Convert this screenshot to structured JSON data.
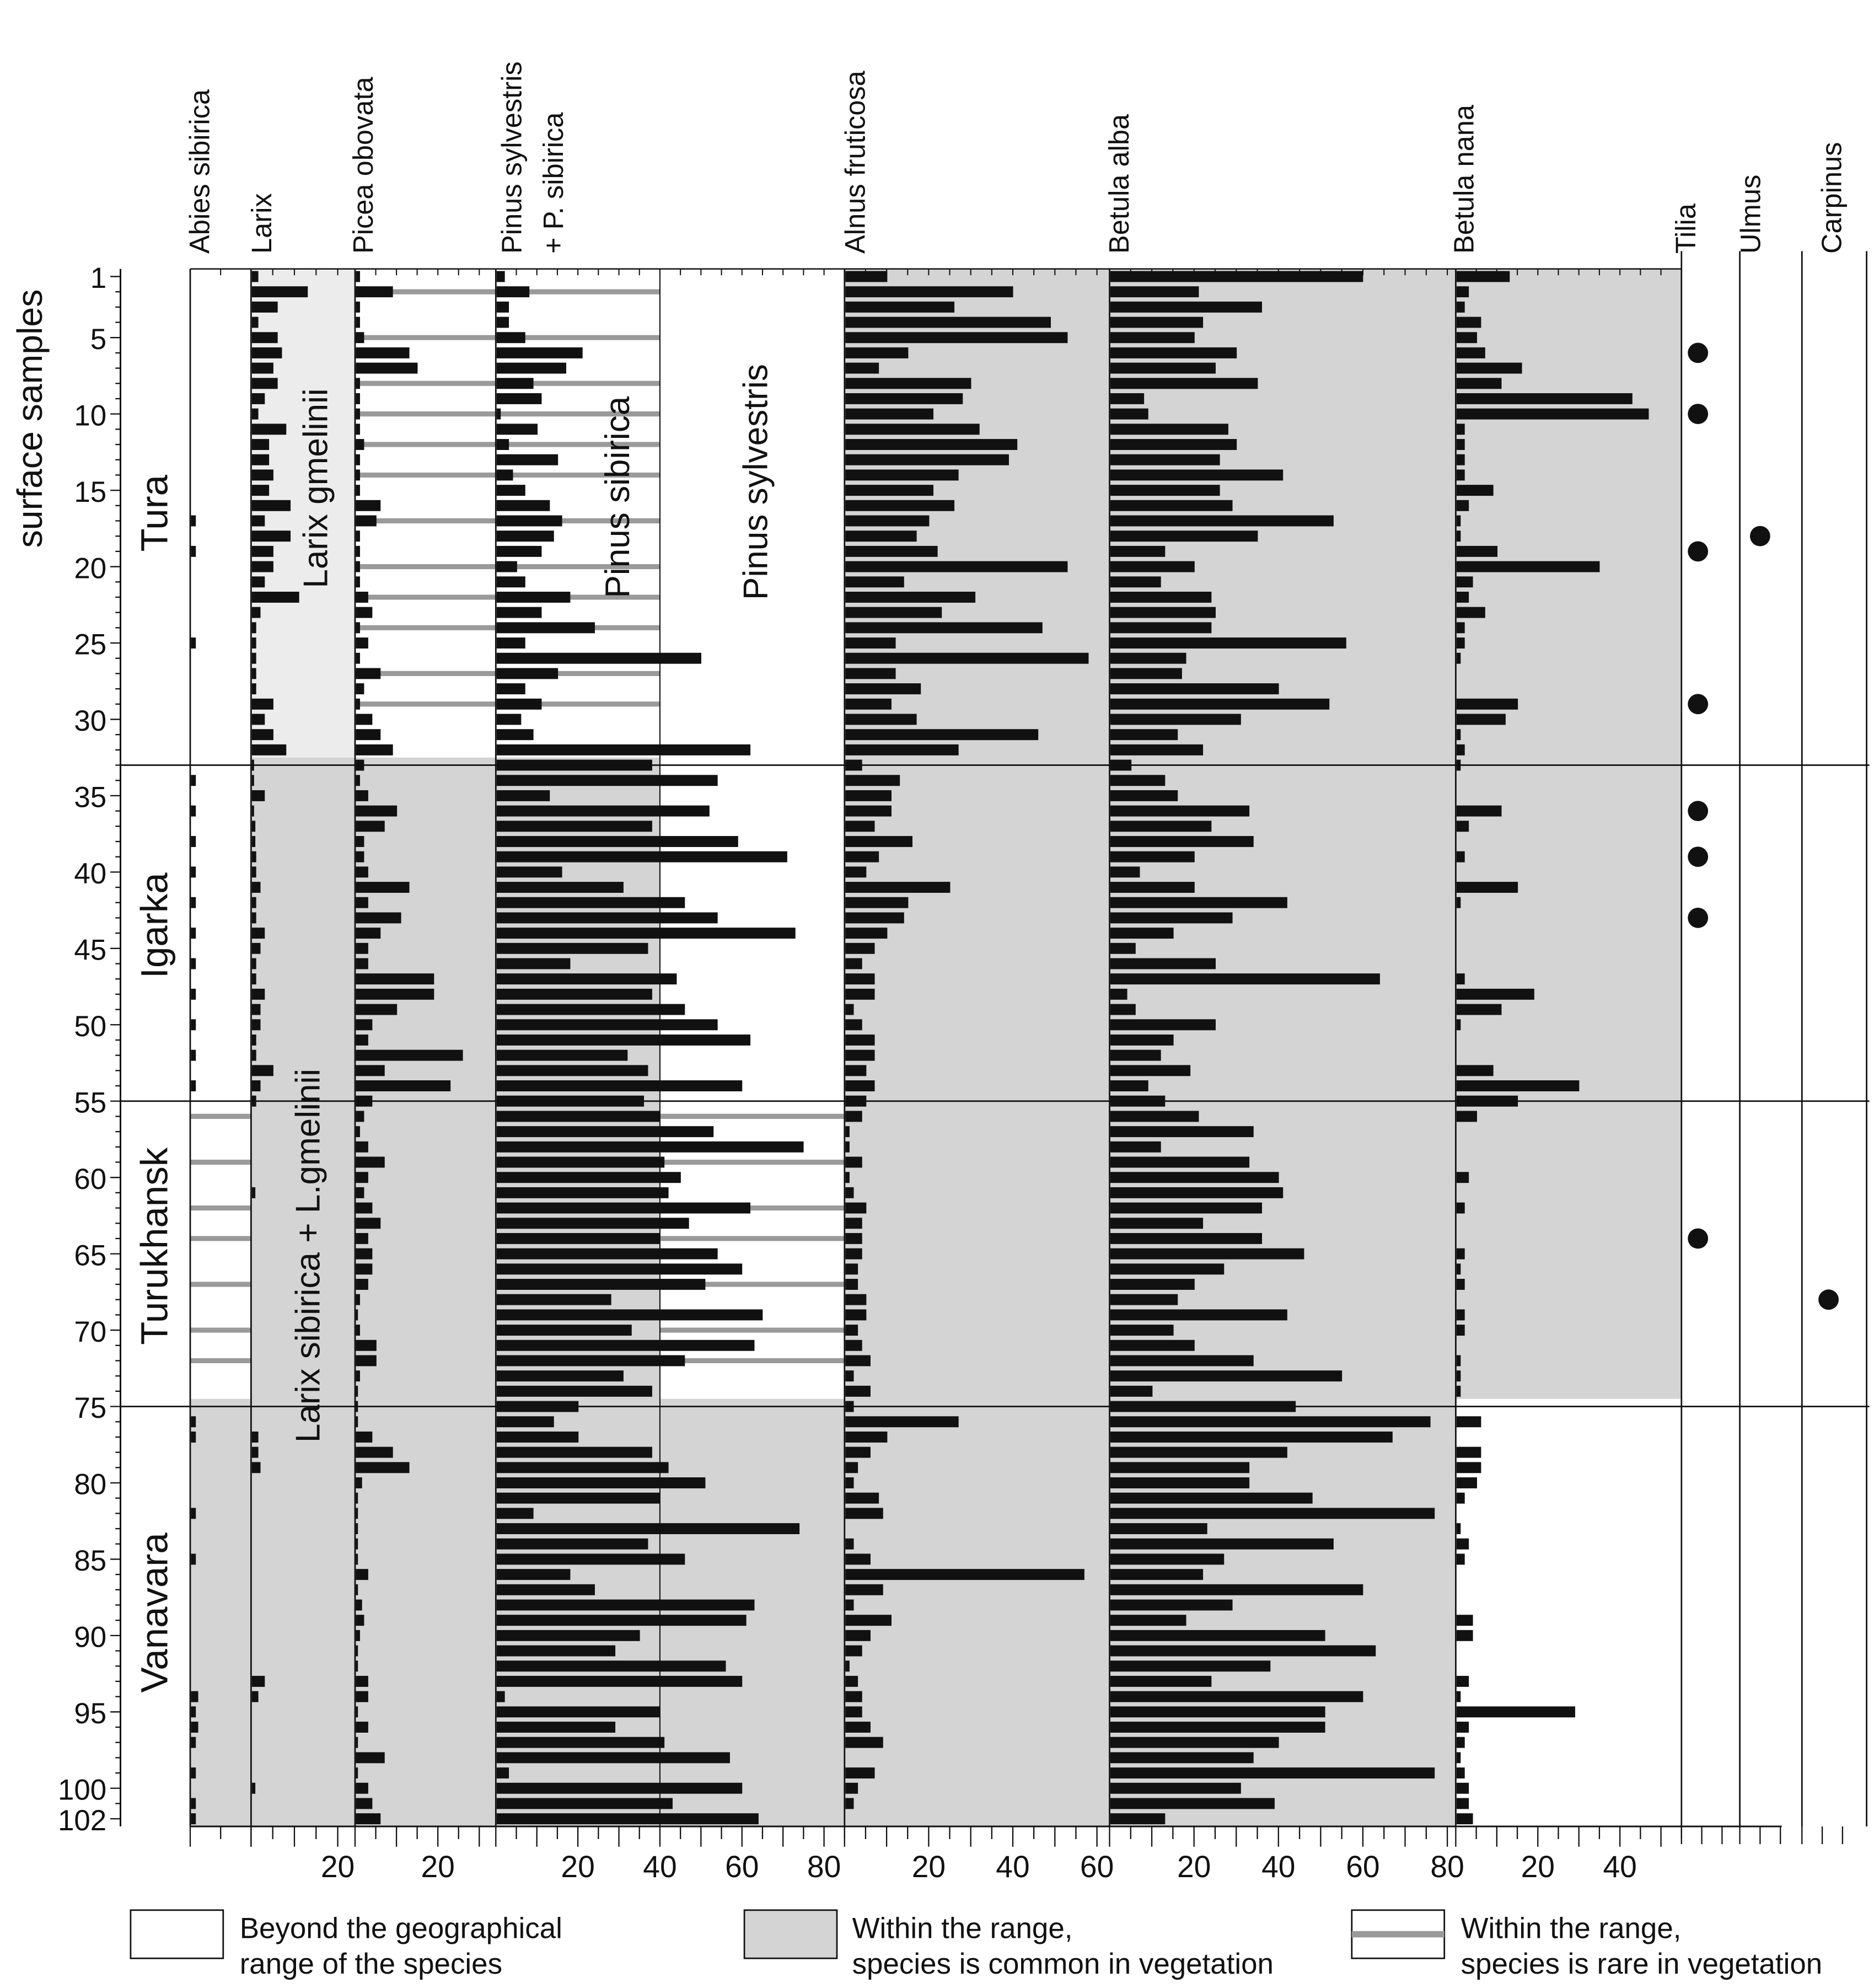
{
  "chart_data": {
    "type": "bar",
    "orientation": "horizontal",
    "y_axis_label": "surface samples",
    "y_ticks": [
      "1",
      "5",
      "10",
      "15",
      "20",
      "25",
      "30",
      "35",
      "40",
      "45",
      "50",
      "55",
      "60",
      "65",
      "70",
      "75",
      "80",
      "85",
      "90",
      "95",
      "100",
      "102"
    ],
    "sample_range": [
      1,
      102
    ],
    "regions": [
      {
        "name": "Tura",
        "samples": [
          1,
          32
        ]
      },
      {
        "name": "Igarka",
        "samples": [
          33,
          54
        ]
      },
      {
        "name": "Turukhansk",
        "samples": [
          55,
          74
        ]
      },
      {
        "name": "Vanavara",
        "samples": [
          75,
          102
        ]
      }
    ],
    "zone_labels": [
      {
        "text": "Larix gmelinii"
      },
      {
        "text": "Larix sibirica + L.gmelinii"
      },
      {
        "text": "Pinus sibirica"
      },
      {
        "text": "Pinus sylvestris"
      }
    ],
    "panels": [
      {
        "name": "Abies sibirica",
        "xmax": 10,
        "ticks": [],
        "values": [
          0,
          0,
          0,
          0,
          0,
          0,
          0,
          0,
          0,
          0,
          0,
          0,
          0,
          0,
          0,
          0,
          0.8,
          0,
          0.8,
          0,
          0,
          0,
          0,
          0,
          0.8,
          0,
          0,
          0,
          0,
          0,
          0,
          0,
          0,
          0.8,
          0,
          0.8,
          0,
          0.8,
          0,
          0.8,
          0,
          0.8,
          0,
          0.8,
          0,
          0.8,
          0,
          0.8,
          0,
          0.8,
          0,
          0.8,
          0,
          0.8,
          0,
          0,
          0,
          0,
          0,
          0,
          0,
          0,
          0,
          0,
          0,
          0,
          0,
          0,
          0,
          0,
          0,
          0,
          0,
          0,
          0,
          0.8,
          0.8,
          0,
          0,
          0,
          0,
          0.8,
          0,
          0,
          0.8,
          0,
          0,
          0,
          0,
          0,
          0,
          0,
          0,
          1.2,
          0.8,
          1.2,
          0.8,
          0,
          0.8,
          0,
          0.8,
          0.8
        ]
      },
      {
        "name": "Larix",
        "xmax": 24,
        "ticks": [
          20
        ],
        "values": [
          1.5,
          13,
          6,
          1.5,
          6,
          7,
          5,
          6,
          3,
          1.5,
          8,
          4,
          4,
          5,
          4,
          9,
          3,
          9,
          5,
          5,
          3,
          11,
          2,
          1,
          1,
          1,
          1,
          1,
          5,
          3,
          5,
          8,
          0.5,
          0.5,
          3,
          0.5,
          0.8,
          0.8,
          1,
          1,
          2,
          1,
          1,
          3,
          2,
          1,
          1,
          3,
          2,
          2,
          1,
          1,
          5,
          2,
          1,
          0,
          0,
          0,
          0,
          0,
          0.8,
          0,
          0,
          0,
          0,
          0,
          0,
          0,
          0,
          0,
          0,
          0,
          0,
          0,
          0,
          0,
          1.5,
          1.5,
          2,
          0,
          0,
          0,
          0,
          0,
          0,
          0,
          0,
          0,
          0,
          0,
          0,
          0,
          3,
          1.5,
          0,
          0,
          0,
          0,
          0,
          0.8,
          0,
          0
        ]
      },
      {
        "name": "Picea obovata",
        "xmax": 34,
        "ticks": [
          20
        ],
        "values": [
          1,
          9,
          1,
          1,
          2,
          13,
          15,
          1,
          1,
          1,
          1,
          2,
          1,
          1,
          1,
          6,
          5,
          1,
          1,
          1,
          1,
          3,
          4,
          1,
          3,
          1,
          6,
          2,
          1,
          4,
          6,
          9,
          2,
          1,
          3,
          10,
          7,
          2,
          2,
          3,
          13,
          3,
          11,
          6,
          3,
          3,
          19,
          19,
          10,
          4,
          3,
          26,
          7,
          23,
          4,
          2,
          1,
          3,
          7,
          3,
          2,
          4,
          6,
          3,
          4,
          4,
          3,
          1,
          0.5,
          1,
          5,
          5,
          1,
          0.5,
          0.5,
          0.5,
          4,
          9,
          13,
          1.5,
          0.5,
          0.5,
          0.5,
          0.5,
          0.5,
          3,
          0.5,
          1.5,
          2,
          1,
          0.5,
          0.5,
          3,
          3,
          0.5,
          3,
          0.5,
          7,
          0.5,
          3,
          4,
          6
        ]
      },
      {
        "name": "Pinus sylvestris + P. sibirica",
        "xmax": 85,
        "ticks": [
          20,
          40,
          60,
          80
        ],
        "values": [
          2,
          8,
          3,
          3,
          7,
          21,
          17,
          9,
          11,
          1,
          10,
          3,
          15,
          4,
          7,
          13,
          16,
          14,
          11,
          5,
          7,
          18,
          11,
          24,
          7,
          50,
          15,
          7,
          11,
          6,
          9,
          62,
          38,
          54,
          13,
          52,
          38,
          59,
          71,
          16,
          31,
          46,
          54,
          73,
          37,
          18,
          44,
          38,
          46,
          54,
          62,
          32,
          37,
          60,
          36,
          40,
          53,
          75,
          41,
          45,
          42,
          62,
          47,
          40,
          54,
          60,
          51,
          28,
          65,
          33,
          63,
          46,
          31,
          38,
          20,
          14,
          20,
          38,
          42,
          51,
          40,
          9,
          74,
          37,
          46,
          18,
          24,
          63,
          61,
          35,
          29,
          56,
          60,
          2,
          40,
          29,
          41,
          57,
          3,
          60,
          43,
          64
        ]
      },
      {
        "name": "Alnus fruticosa",
        "xmax": 63,
        "ticks": [
          20,
          40,
          60
        ],
        "values": [
          10,
          40,
          26,
          49,
          53,
          15,
          8,
          30,
          28,
          21,
          32,
          41,
          39,
          27,
          21,
          26,
          20,
          17,
          22,
          53,
          14,
          31,
          23,
          47,
          12,
          58,
          12,
          18,
          11,
          17,
          46,
          27,
          4,
          13,
          11,
          11,
          7,
          16,
          8,
          5,
          25,
          15,
          14,
          10,
          7,
          4,
          7,
          7,
          2,
          4,
          7,
          7,
          5,
          7,
          5,
          4,
          1,
          1,
          4,
          1,
          2,
          5,
          4,
          4,
          4,
          3,
          3,
          5,
          5,
          3,
          4,
          6,
          2,
          6,
          2,
          27,
          10,
          6,
          3,
          2,
          8,
          9,
          0,
          2,
          6,
          57,
          9,
          2,
          11,
          6,
          4,
          1,
          3,
          4,
          4,
          6,
          9,
          0,
          7,
          3,
          2,
          0
        ]
      },
      {
        "name": "Betula alba",
        "xmax": 82,
        "ticks": [
          20,
          40,
          60,
          80
        ],
        "values": [
          60,
          21,
          36,
          22,
          20,
          30,
          25,
          35,
          8,
          9,
          28,
          30,
          26,
          41,
          26,
          29,
          53,
          35,
          13,
          20,
          12,
          24,
          25,
          24,
          56,
          18,
          17,
          40,
          52,
          31,
          16,
          22,
          5,
          13,
          16,
          33,
          24,
          34,
          20,
          7,
          20,
          42,
          29,
          15,
          6,
          25,
          64,
          4,
          6,
          25,
          15,
          12,
          19,
          9,
          13,
          21,
          34,
          12,
          33,
          40,
          41,
          36,
          22,
          36,
          46,
          27,
          20,
          16,
          42,
          15,
          20,
          34,
          55,
          10,
          44,
          76,
          67,
          42,
          33,
          33,
          48,
          77,
          23,
          53,
          27,
          22,
          60,
          29,
          18,
          51,
          63,
          38,
          24,
          60,
          51,
          51,
          40,
          34,
          77,
          31,
          39,
          13
        ]
      },
      {
        "name": "Betula nana",
        "xmax": 55,
        "ticks": [
          20,
          40
        ],
        "values": [
          13,
          3,
          2,
          6,
          5,
          7,
          16,
          11,
          43,
          47,
          2,
          2,
          2,
          2,
          9,
          3,
          1,
          1,
          10,
          35,
          4,
          3,
          7,
          2,
          2,
          1,
          0,
          0,
          15,
          12,
          1,
          2,
          1,
          0,
          0,
          11,
          3,
          0,
          2,
          0,
          15,
          1,
          0,
          0,
          0,
          0,
          2,
          19,
          11,
          1,
          0,
          0,
          9,
          30,
          15,
          5,
          0,
          0,
          0,
          3,
          0,
          2,
          0,
          0,
          2,
          1,
          2,
          0,
          2,
          2,
          0,
          1,
          1,
          1,
          0,
          6,
          0,
          6,
          6,
          5,
          2,
          0,
          1,
          3,
          2,
          0,
          0,
          0,
          4,
          4,
          0,
          0,
          3,
          1,
          29,
          3,
          2,
          1,
          2,
          3,
          3,
          4
        ]
      },
      {
        "name": "Tilia",
        "type": "presence",
        "present_samples": [
          6,
          10,
          19,
          29,
          36,
          39,
          43,
          64
        ]
      },
      {
        "name": "Ulmus",
        "type": "presence",
        "present_samples": [
          18
        ]
      },
      {
        "name": "Carpinus",
        "type": "presence",
        "present_samples": [
          68
        ]
      }
    ],
    "range_hatch_samples": [
      2,
      5,
      8,
      10,
      12,
      14,
      17,
      20,
      22,
      24,
      27,
      29,
      56,
      59,
      62,
      64,
      67,
      70,
      72
    ],
    "legend": [
      {
        "key": "beyond",
        "label_line1": "Beyond the geographical",
        "label_line2": "range of the species"
      },
      {
        "key": "common",
        "label_line1": "Within the range,",
        "label_line2": "species is common in vegetation"
      },
      {
        "key": "rare",
        "label_line1": "Within the range,",
        "label_line2": "species is rare in vegetation"
      }
    ],
    "colors": {
      "common": "#d4d4d4",
      "beyond": "#ffffff",
      "rare_line": "#9a9a9a",
      "bar": "#111111",
      "light_zone": "#ececec"
    },
    "grid": false
  }
}
